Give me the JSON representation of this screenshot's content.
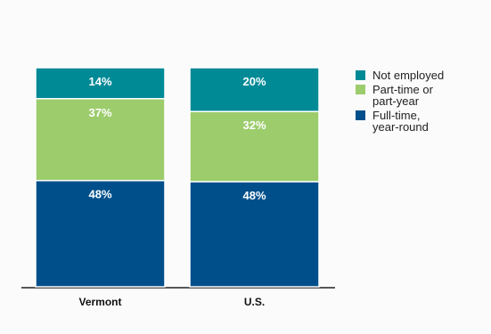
{
  "chart_data": {
    "type": "bar",
    "stacked": true,
    "orientation": "vertical",
    "unit": "%",
    "categories": [
      "Vermont",
      "U.S."
    ],
    "series": [
      {
        "name": "Full-time, year-round",
        "label_lines": [
          "Full-time,",
          "year-round"
        ],
        "color": "#004f8b",
        "values": [
          48,
          48
        ],
        "labels": [
          "48%",
          "48%"
        ]
      },
      {
        "name": "Part-time or part-year",
        "label_lines": [
          "Part-time or",
          "part-year"
        ],
        "color": "#9ccc6c",
        "values": [
          37,
          32
        ],
        "labels": [
          "37%",
          "32%"
        ]
      },
      {
        "name": "Not employed",
        "label_lines": [
          "Not employed"
        ],
        "color": "#008a96",
        "values": [
          14,
          20
        ],
        "labels": [
          "14%",
          "20%"
        ]
      }
    ],
    "legend_order": [
      2,
      1,
      0
    ],
    "legend_position": "right",
    "grid": false
  }
}
